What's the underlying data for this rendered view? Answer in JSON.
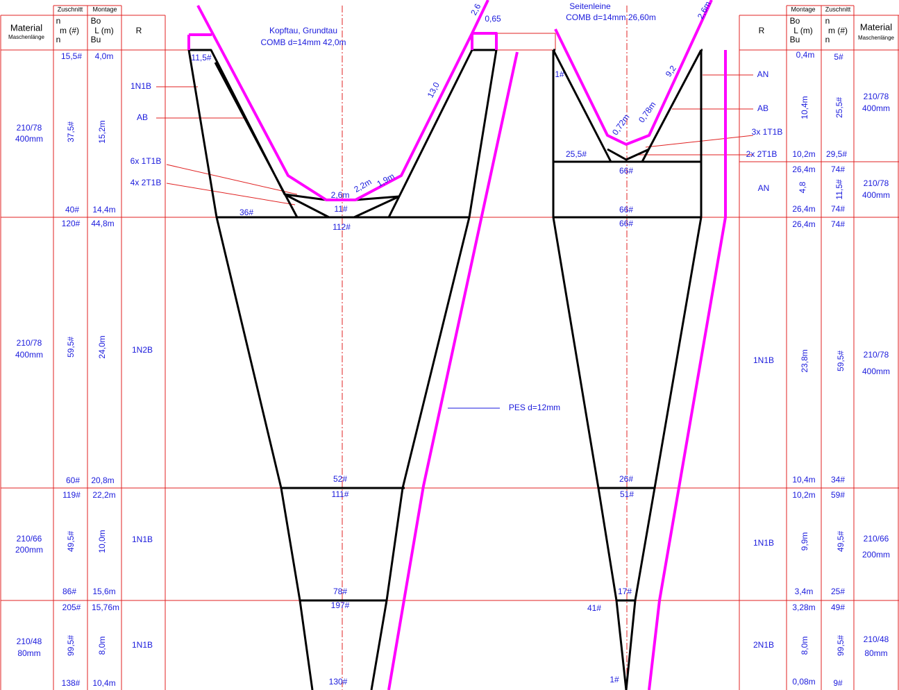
{
  "left_header": [
    "Zuschnitt",
    "Montage",
    "Material",
    "Maschenlänge",
    "n",
    "m  (#)",
    "n",
    "Bo",
    "L  (m)",
    "Bu",
    "R"
  ],
  "right_header": [
    "Montage",
    "Zuschnitt",
    "R",
    "Bo",
    "L  (m)",
    "Bu",
    "n",
    "m  (#)",
    "n",
    "Material",
    "Maschenlänge"
  ],
  "left_table": [
    "15,5#",
    "4,0m",
    "210/78",
    "400mm",
    "37,5#",
    "15,2m",
    "40#",
    "14,4m",
    "1N1B",
    "AB",
    "6x 1T1B",
    "4x 2T1B",
    "120#",
    "44,8m",
    "210/78",
    "400mm",
    "59,5#",
    "24,0m",
    "1N2B",
    "60#",
    "20,8m",
    "119#",
    "22,2m",
    "210/66",
    "200mm",
    "49,5#",
    "10,0m",
    "1N1B",
    "86#",
    "15,6m",
    "205#",
    "15,76m",
    "210/48",
    "80mm",
    "99,5#",
    "8,0m",
    "1N1B",
    "138#",
    "10,4m"
  ],
  "left_drawing": [
    "Kopftau, Grundtau",
    "COMB d=14mm  42,0m",
    "11,5#",
    "36#",
    "2,6m",
    "11#",
    "2,2m",
    "1,9m",
    "13,0",
    "2,6",
    "0,65",
    "112#",
    "52#",
    "111#",
    "78#",
    "197#",
    "130#",
    "PES d=12mm"
  ],
  "right_drawing": [
    "Seitenleine",
    "COMB d=14mm   26,60m",
    "2,6m",
    "1#",
    "9,2",
    "0,72m",
    "0,78m",
    "25,5#",
    "66#",
    "66#",
    "66#",
    "26#",
    "51#",
    "17#",
    "41#",
    "1#",
    "AN",
    "AB",
    "3x 1T1B",
    "2x 2T1B",
    "AN",
    "1N1B",
    "1N1B",
    "2N1B"
  ],
  "right_table": [
    "0,4m",
    "5#",
    "10,4m",
    "25,5#",
    "210/78",
    "400mm",
    "10,2m",
    "29,5#",
    "26,4m",
    "74#",
    "4,8",
    "11,5#",
    "210/78",
    "400mm",
    "26,4m",
    "74#",
    "26,4m",
    "74#",
    "23,8m",
    "59,5#",
    "210/78",
    "400mm",
    "10,4m",
    "34#",
    "10,2m",
    "59#",
    "9,9m",
    "49,5#",
    "210/66",
    "200mm",
    "3,4m",
    "25#",
    "3,28m",
    "49#",
    "8,0m",
    "99,5#",
    "210/48",
    "80mm",
    "0,08m",
    "9#"
  ]
}
